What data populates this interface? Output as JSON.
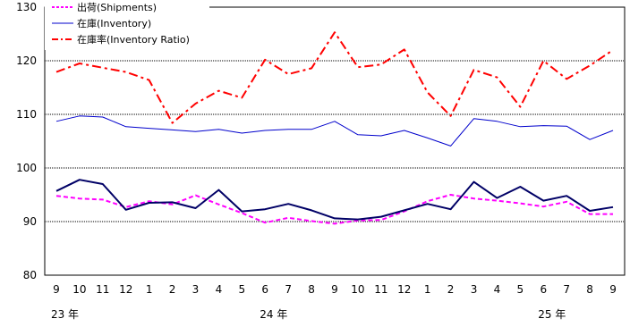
{
  "chart_data": {
    "type": "line",
    "categories": [
      "9",
      "10",
      "11",
      "12",
      "1",
      "2",
      "3",
      "4",
      "5",
      "6",
      "7",
      "8",
      "9",
      "10",
      "11",
      "12",
      "1",
      "2",
      "3",
      "4",
      "5",
      "6",
      "7",
      "8",
      "9"
    ],
    "year_labels": [
      {
        "index": 0,
        "text": "23 年"
      },
      {
        "index": 9,
        "text": "24 年"
      },
      {
        "index": 21,
        "text": "25 年"
      }
    ],
    "ylim": [
      80,
      130
    ],
    "yticks": [
      80,
      90,
      100,
      110,
      120,
      130
    ],
    "grid": {
      "y": "dotted"
    },
    "legend": "top-left",
    "series": [
      {
        "name": "出荷(Shipments)",
        "color": "#ff00ff",
        "dash": "dashed",
        "values": [
          94.8,
          94.3,
          94.1,
          92.7,
          93.8,
          93.2,
          94.9,
          93.2,
          91.6,
          89.8,
          90.7,
          90.1,
          89.6,
          90.2,
          90.3,
          91.9,
          93.8,
          95.0,
          94.3,
          93.9,
          93.4,
          92.8,
          93.7,
          91.4,
          91.4
        ]
      },
      {
        "name": "在庫(Inventory)",
        "color": "#0000cc",
        "dash": "solid",
        "values": [
          108.7,
          109.7,
          109.5,
          107.7,
          107.4,
          107.1,
          106.8,
          107.2,
          106.5,
          107.0,
          107.2,
          107.2,
          108.7,
          106.2,
          106.0,
          107.0,
          105.6,
          104.1,
          109.2,
          108.7,
          107.7,
          107.9,
          107.8,
          105.3,
          107.0
        ]
      },
      {
        "name": "在庫率(Inventory Ratio)",
        "color": "#ff0000",
        "dash": "dashdot",
        "values": [
          117.9,
          119.5,
          118.7,
          117.9,
          116.4,
          108.4,
          112.0,
          114.4,
          113.1,
          120.2,
          117.5,
          118.6,
          125.3,
          118.8,
          119.3,
          122.1,
          114.1,
          109.7,
          118.3,
          116.9,
          111.4,
          120.0,
          116.6,
          119.1,
          122.0
        ]
      },
      {
        "name": "",
        "color": "#000066",
        "dash": "solid",
        "width": 2,
        "values": [
          95.7,
          97.8,
          97.0,
          92.2,
          93.5,
          93.6,
          92.5,
          95.9,
          91.9,
          92.3,
          93.3,
          92.1,
          90.6,
          90.4,
          90.9,
          92.1,
          93.3,
          92.3,
          97.4,
          94.4,
          96.5,
          93.9,
          94.8,
          92.0,
          92.7
        ]
      }
    ]
  }
}
